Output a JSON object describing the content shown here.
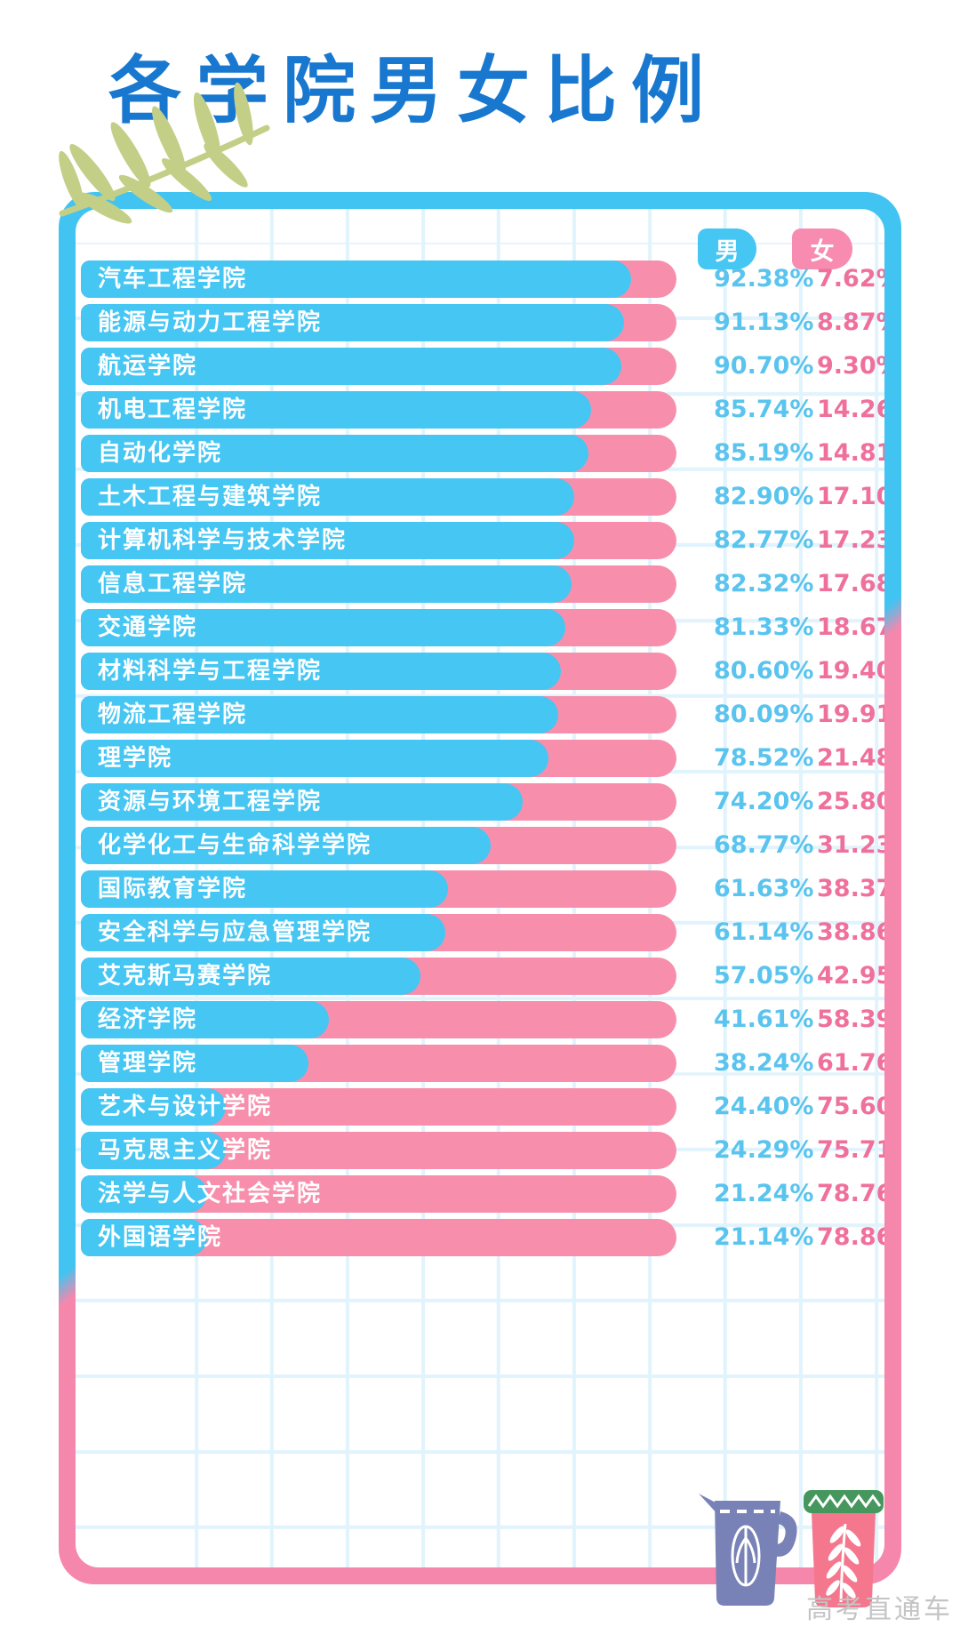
{
  "title": "各学院男女比例",
  "legend": {
    "male": "男",
    "female": "女"
  },
  "watermark": "高考直通车",
  "colors": {
    "title": "#1877CF",
    "male_bar": "#45C6F3",
    "female_bar": "#F78FAC",
    "male_value_text": "#5AC4EE",
    "female_value_text": "#F0709C",
    "card_border_top": "#41C4F1",
    "card_border_bottom": "#F687AC",
    "grid_line": "#E1F3FC",
    "leaf": "#C3CF87",
    "jug": "#7982B6",
    "cup": "#F4778E",
    "cup_band": "#45975D"
  },
  "icons": {
    "top_left": "olive-branch-leaf",
    "bottom_left_item": "pitcher-jug-illustration",
    "bottom_right_item": "plant-cup-illustration"
  },
  "chart_data": {
    "type": "bar",
    "orientation": "horizontal-stacked",
    "title": "各学院男女比例",
    "legend": [
      "男",
      "女"
    ],
    "unit": "%",
    "x_range": [
      0,
      100
    ],
    "grid": true,
    "categories": [
      "汽车工程学院",
      "能源与动力工程学院",
      "航运学院",
      "机电工程学院",
      "自动化学院",
      "土木工程与建筑学院",
      "计算机科学与技术学院",
      "信息工程学院",
      "交通学院",
      "材料科学与工程学院",
      "物流工程学院",
      "理学院",
      "资源与环境工程学院",
      "化学化工与生命科学学院",
      "国际教育学院",
      "安全科学与应急管理学院",
      "艾克斯马赛学院",
      "经济学院",
      "管理学院",
      "艺术与设计学院",
      "马克思主义学院",
      "法学与人文社会学院",
      "外国语学院"
    ],
    "series": [
      {
        "name": "男",
        "values": [
          92.38,
          91.13,
          90.7,
          85.74,
          85.19,
          82.9,
          82.77,
          82.32,
          81.33,
          80.6,
          80.09,
          78.52,
          74.2,
          68.77,
          61.63,
          61.14,
          57.05,
          41.61,
          38.24,
          24.4,
          24.29,
          21.24,
          21.14
        ]
      },
      {
        "name": "女",
        "values": [
          7.62,
          8.87,
          9.3,
          14.26,
          14.81,
          17.1,
          17.23,
          17.68,
          18.67,
          19.4,
          19.91,
          21.48,
          25.8,
          31.23,
          38.37,
          38.86,
          42.95,
          58.39,
          61.76,
          75.6,
          75.71,
          78.76,
          78.86
        ]
      }
    ],
    "rows": [
      {
        "college": "汽车工程学院",
        "male": 92.38,
        "female": 7.62
      },
      {
        "college": "能源与动力工程学院",
        "male": 91.13,
        "female": 8.87
      },
      {
        "college": "航运学院",
        "male": 90.7,
        "female": 9.3
      },
      {
        "college": "机电工程学院",
        "male": 85.74,
        "female": 14.26
      },
      {
        "college": "自动化学院",
        "male": 85.19,
        "female": 14.81
      },
      {
        "college": "土木工程与建筑学院",
        "male": 82.9,
        "female": 17.1
      },
      {
        "college": "计算机科学与技术学院",
        "male": 82.77,
        "female": 17.23
      },
      {
        "college": "信息工程学院",
        "male": 82.32,
        "female": 17.68
      },
      {
        "college": "交通学院",
        "male": 81.33,
        "female": 18.67
      },
      {
        "college": "材料科学与工程学院",
        "male": 80.6,
        "female": 19.4
      },
      {
        "college": "物流工程学院",
        "male": 80.09,
        "female": 19.91
      },
      {
        "college": "理学院",
        "male": 78.52,
        "female": 21.48
      },
      {
        "college": "资源与环境工程学院",
        "male": 74.2,
        "female": 25.8
      },
      {
        "college": "化学化工与生命科学学院",
        "male": 68.77,
        "female": 31.23
      },
      {
        "college": "国际教育学院",
        "male": 61.63,
        "female": 38.37
      },
      {
        "college": "安全科学与应急管理学院",
        "male": 61.14,
        "female": 38.86
      },
      {
        "college": "艾克斯马赛学院",
        "male": 57.05,
        "female": 42.95
      },
      {
        "college": "经济学院",
        "male": 41.61,
        "female": 58.39
      },
      {
        "college": "管理学院",
        "male": 38.24,
        "female": 61.76
      },
      {
        "college": "艺术与设计学院",
        "male": 24.4,
        "female": 75.6
      },
      {
        "college": "马克思主义学院",
        "male": 24.29,
        "female": 75.71
      },
      {
        "college": "法学与人文社会学院",
        "male": 21.24,
        "female": 78.76
      },
      {
        "college": "外国语学院",
        "male": 21.14,
        "female": 78.86
      }
    ]
  }
}
